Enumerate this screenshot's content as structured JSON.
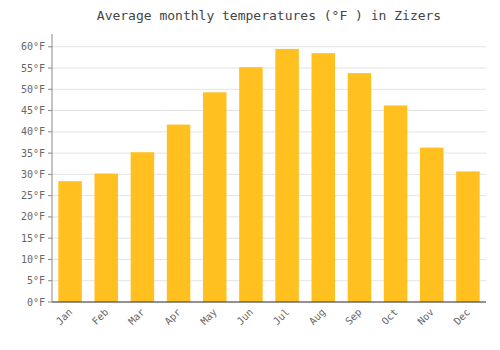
{
  "chart_data": {
    "type": "bar",
    "title": "Average monthly temperatures (°F ) in Zizers",
    "categories": [
      "Jan",
      "Feb",
      "Mar",
      "Apr",
      "May",
      "Jun",
      "Jul",
      "Aug",
      "Sep",
      "Oct",
      "Nov",
      "Dec"
    ],
    "values": [
      28.4,
      30.2,
      35.2,
      41.7,
      49.3,
      55.2,
      59.5,
      58.5,
      53.8,
      46.2,
      36.3,
      30.7
    ],
    "color": "#FFC020",
    "ylim": [
      0,
      63
    ],
    "yticks": [
      {
        "value": 0,
        "label": "0°F"
      },
      {
        "value": 5,
        "label": "5°F"
      },
      {
        "value": 10,
        "label": "10°F"
      },
      {
        "value": 15,
        "label": "15°F"
      },
      {
        "value": 20,
        "label": "20°F"
      },
      {
        "value": 25,
        "label": "25°F"
      },
      {
        "value": 30,
        "label": "30°F"
      },
      {
        "value": 35,
        "label": "35°F"
      },
      {
        "value": 40,
        "label": "40°F"
      },
      {
        "value": 45,
        "label": "45°F"
      },
      {
        "value": 50,
        "label": "50°F"
      },
      {
        "value": 55,
        "label": "55°F"
      },
      {
        "value": 60,
        "label": "60°F"
      }
    ],
    "grid": true
  }
}
